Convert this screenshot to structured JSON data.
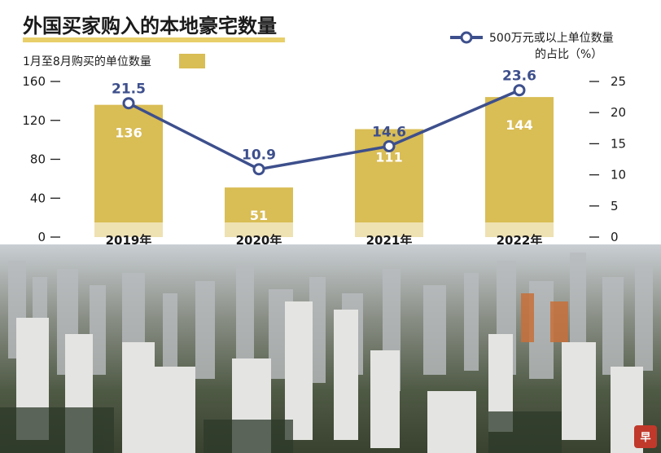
{
  "chart_data": {
    "type": "bar",
    "title": "外国买家购入的本地豪宅数量",
    "categories": [
      "2019年",
      "2020年",
      "2021年",
      "2022年"
    ],
    "series": [
      {
        "name": "1月至8月购买的单位数量",
        "type": "bar",
        "axis": "left",
        "values": [
          136,
          51,
          111,
          144
        ],
        "color": "#d9bd55"
      },
      {
        "name": "500万元或以上单位数量的占比（%）",
        "type": "line",
        "axis": "right",
        "values": [
          21.5,
          10.9,
          14.6,
          23.6
        ],
        "color": "#3d4f8c"
      }
    ],
    "y_left": {
      "ticks": [
        0,
        40,
        80,
        120,
        160
      ],
      "ylim": [
        0,
        160
      ]
    },
    "y_right": {
      "ticks": [
        0,
        5,
        10,
        15,
        20,
        25
      ],
      "ylim": [
        0,
        25
      ]
    },
    "legend": {
      "line_lines": [
        "500万元或以上单位数量",
        "的占比（%）"
      ],
      "bar_label": "1月至8月购买的单位数量"
    }
  },
  "logo": {
    "text": "早"
  },
  "colors": {
    "bar": "#d9bd55",
    "line": "#3d4f8c",
    "title_underline": "#e8cf6a"
  }
}
